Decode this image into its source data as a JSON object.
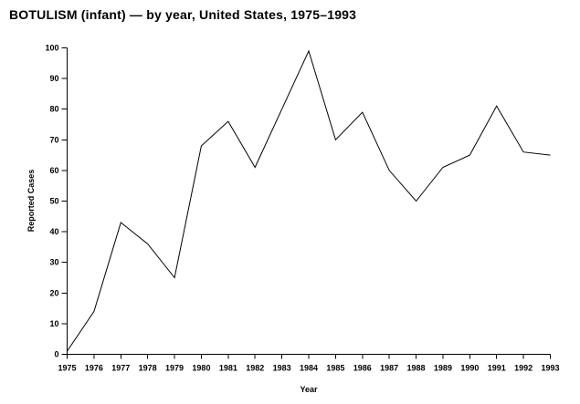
{
  "page": {
    "background_color": "#ffffff",
    "foreground_color": "#000000"
  },
  "chart_data": {
    "type": "line",
    "title": "BOTULISM (infant) — by year, United States, 1975–1993",
    "xlabel": "Year",
    "ylabel": "Reported Cases",
    "categories": [
      1975,
      1976,
      1977,
      1978,
      1979,
      1980,
      1981,
      1982,
      1983,
      1984,
      1985,
      1986,
      1987,
      1988,
      1989,
      1990,
      1991,
      1992,
      1993
    ],
    "values": [
      1,
      14,
      43,
      36,
      25,
      68,
      76,
      61,
      80,
      99,
      70,
      79,
      60,
      50,
      61,
      65,
      81,
      66,
      65
    ],
    "ylim": [
      0,
      100
    ],
    "ytick_step": 10,
    "grid": false,
    "legend": "none",
    "line_color": "#000000",
    "axis_color": "#000000"
  }
}
